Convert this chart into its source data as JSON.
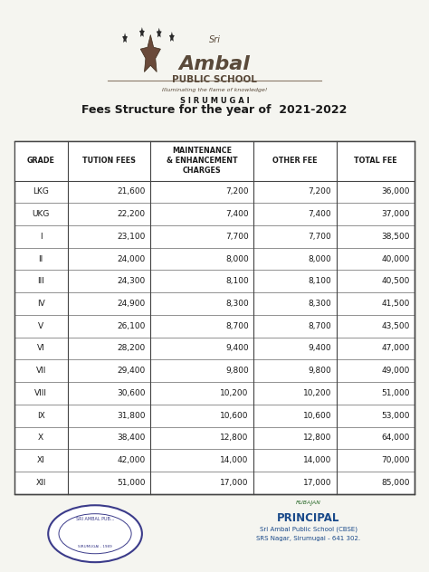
{
  "title": "Fees Structure for the year of  2021-2022",
  "school_name": "Sri Ambal",
  "school_subtitle": "PUBLIC SCHOOL",
  "school_location": "S I R U M U G A I",
  "school_tagline": "Illuminating the flame of knowledge!",
  "col_headers": [
    "GRADE",
    "TUTION FEES",
    "MAINTENANCE\n& ENHANCEMENT\nCHARGES",
    "OTHER FEE",
    "TOTAL FEE"
  ],
  "rows": [
    [
      "LKG",
      "21,600",
      "7,200",
      "7,200",
      "36,000"
    ],
    [
      "UKG",
      "22,200",
      "7,400",
      "7,400",
      "37,000"
    ],
    [
      "I",
      "23,100",
      "7,700",
      "7,700",
      "38,500"
    ],
    [
      "II",
      "24,000",
      "8,000",
      "8,000",
      "40,000"
    ],
    [
      "III",
      "24,300",
      "8,100",
      "8,100",
      "40,500"
    ],
    [
      "IV",
      "24,900",
      "8,300",
      "8,300",
      "41,500"
    ],
    [
      "V",
      "26,100",
      "8,700",
      "8,700",
      "43,500"
    ],
    [
      "VI",
      "28,200",
      "9,400",
      "9,400",
      "47,000"
    ],
    [
      "VII",
      "29,400",
      "9,800",
      "9,800",
      "49,000"
    ],
    [
      "VIII",
      "30,600",
      "10,200",
      "10,200",
      "51,000"
    ],
    [
      "IX",
      "31,800",
      "10,600",
      "10,600",
      "53,000"
    ],
    [
      "X",
      "38,400",
      "12,800",
      "12,800",
      "64,000"
    ],
    [
      "XI",
      "42,000",
      "14,000",
      "14,000",
      "70,000"
    ],
    [
      "XII",
      "51,000",
      "17,000",
      "17,000",
      "85,000"
    ]
  ],
  "col_alignments": [
    "center",
    "right",
    "right",
    "right",
    "right"
  ],
  "principal_text": "PRINCIPAL",
  "principal_sub1": "Sri Ambal Public School (CBSE)",
  "principal_sub2": "SRS Nagar, Sirumugai - 641 302.",
  "bg_color": "#f5f5f0",
  "table_bg": "#ffffff",
  "text_color": "#1a1a1a",
  "header_bg": "#ffffff",
  "stamp_color": "#3b3b8a",
  "principal_color": "#1a4a8a"
}
